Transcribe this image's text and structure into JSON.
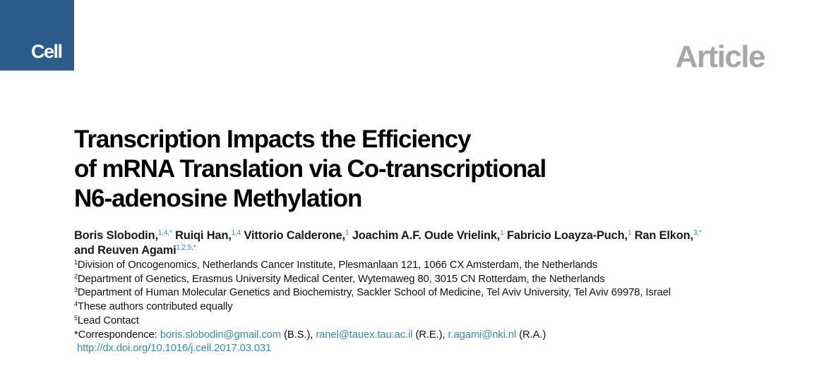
{
  "header": {
    "journal": "Cell",
    "article_type": "Article"
  },
  "title": {
    "lines": [
      "Transcription Impacts the Efficiency",
      "of mRNA Translation via Co-transcriptional",
      "N6-adenosine Methylation"
    ]
  },
  "authors": [
    {
      "name": "Boris Slobodin,",
      "marks": "1,4,*"
    },
    {
      "name": "Ruiqi Han,",
      "marks": "1,4"
    },
    {
      "name": "Vittorio Calderone,",
      "marks": "1"
    },
    {
      "name": "Joachim A.F. Oude Vrielink,",
      "marks": "1"
    },
    {
      "name": "Fabricio Loayza-Puch,",
      "marks": "1"
    },
    {
      "name": "Ran Elkon,",
      "marks": "3,*"
    },
    {
      "name": "and Reuven Agami",
      "marks": "1,2,5,*"
    }
  ],
  "affiliations": [
    {
      "mark": "1",
      "text": "Division of Oncogenomics, Netherlands Cancer Institute, Plesmanlaan 121, 1066 CX Amsterdam, the Netherlands"
    },
    {
      "mark": "2",
      "text": "Department of Genetics, Erasmus University Medical Center, Wytemaweg 80, 3015 CN Rotterdam, the Netherlands"
    },
    {
      "mark": "3",
      "text": "Department of Human Molecular Genetics and Biochemistry, Sackler School of Medicine, Tel Aviv University, Tel Aviv 69978, Israel"
    },
    {
      "mark": "4",
      "text": "These authors contributed equally"
    },
    {
      "mark": "5",
      "text": "Lead Contact"
    }
  ],
  "correspondence": {
    "label": "*Correspondence:",
    "contacts": [
      {
        "email": "boris.slobodin@gmail.com",
        "who": "(B.S.),"
      },
      {
        "email": "ranel@tauex.tau.ac.il",
        "who": "(R.E.),"
      },
      {
        "email": "r.agami@nki.nl",
        "who": "(R.A.)"
      }
    ]
  },
  "doi": "http://dx.doi.org/10.1016/j.cell.2017.03.031"
}
